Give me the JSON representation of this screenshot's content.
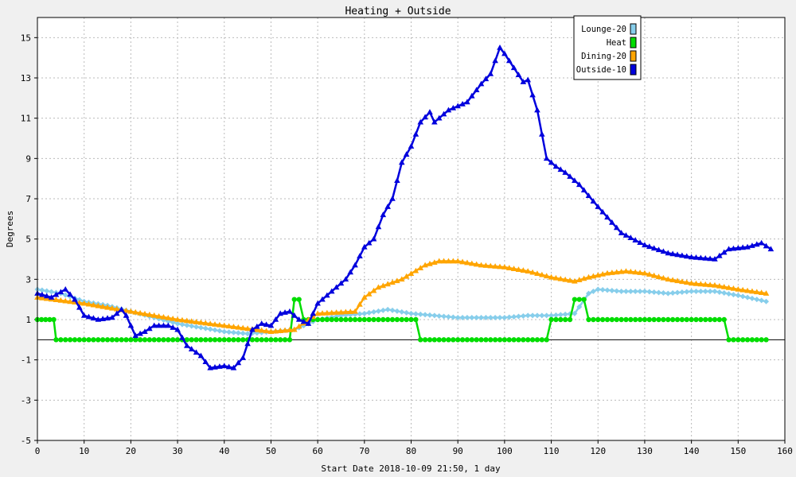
{
  "chart_data": {
    "type": "line",
    "title": "Heating + Outside",
    "xlabel": "Start Date 2018-10-09 21:50, 1 day",
    "ylabel": "Degrees",
    "xlim": [
      0,
      160
    ],
    "ylim": [
      -5,
      16
    ],
    "xticks": [
      0,
      10,
      20,
      30,
      40,
      50,
      60,
      70,
      80,
      90,
      100,
      110,
      120,
      130,
      140,
      150,
      160
    ],
    "yticks": [
      -5,
      -3,
      -1,
      1,
      3,
      5,
      7,
      9,
      11,
      13,
      15
    ],
    "grid": true,
    "legend_position": "top-right",
    "series": [
      {
        "name": "Lounge-20",
        "color": "#87ceeb",
        "marker": "diamond",
        "points": [
          [
            0,
            2.5
          ],
          [
            5,
            2.3
          ],
          [
            10,
            1.9
          ],
          [
            15,
            1.7
          ],
          [
            20,
            1.4
          ],
          [
            25,
            1.1
          ],
          [
            30,
            0.8
          ],
          [
            35,
            0.6
          ],
          [
            40,
            0.4
          ],
          [
            45,
            0.3
          ],
          [
            50,
            0.4
          ],
          [
            55,
            0.5
          ],
          [
            60,
            1.0
          ],
          [
            65,
            1.2
          ],
          [
            70,
            1.3
          ],
          [
            75,
            1.5
          ],
          [
            80,
            1.3
          ],
          [
            85,
            1.2
          ],
          [
            90,
            1.1
          ],
          [
            95,
            1.1
          ],
          [
            100,
            1.1
          ],
          [
            105,
            1.2
          ],
          [
            110,
            1.2
          ],
          [
            115,
            1.3
          ],
          [
            118,
            2.3
          ],
          [
            120,
            2.5
          ],
          [
            125,
            2.4
          ],
          [
            130,
            2.4
          ],
          [
            135,
            2.3
          ],
          [
            140,
            2.4
          ],
          [
            145,
            2.4
          ],
          [
            150,
            2.2
          ],
          [
            156,
            1.9
          ]
        ]
      },
      {
        "name": "Heat",
        "color": "#00dd00",
        "marker": "circle",
        "points": [
          [
            0,
            1
          ],
          [
            3.5,
            1
          ],
          [
            4,
            0
          ],
          [
            54,
            0
          ],
          [
            55,
            2
          ],
          [
            56,
            2
          ],
          [
            57,
            1
          ],
          [
            81,
            1
          ],
          [
            82,
            0
          ],
          [
            109,
            0
          ],
          [
            110,
            1
          ],
          [
            114,
            1
          ],
          [
            115,
            2
          ],
          [
            117,
            2
          ],
          [
            118,
            1
          ],
          [
            147,
            1
          ],
          [
            148,
            0
          ],
          [
            156,
            0
          ]
        ]
      },
      {
        "name": "Dining-20",
        "color": "#ffa500",
        "marker": "triangle",
        "points": [
          [
            0,
            2.1
          ],
          [
            10,
            1.8
          ],
          [
            20,
            1.4
          ],
          [
            30,
            1.0
          ],
          [
            40,
            0.7
          ],
          [
            50,
            0.4
          ],
          [
            55,
            0.5
          ],
          [
            60,
            1.3
          ],
          [
            68,
            1.4
          ],
          [
            70,
            2.1
          ],
          [
            73,
            2.6
          ],
          [
            78,
            3.0
          ],
          [
            83,
            3.7
          ],
          [
            86,
            3.9
          ],
          [
            90,
            3.9
          ],
          [
            95,
            3.7
          ],
          [
            100,
            3.6
          ],
          [
            105,
            3.4
          ],
          [
            110,
            3.1
          ],
          [
            115,
            2.9
          ],
          [
            118,
            3.1
          ],
          [
            122,
            3.3
          ],
          [
            126,
            3.4
          ],
          [
            130,
            3.3
          ],
          [
            135,
            3.0
          ],
          [
            140,
            2.8
          ],
          [
            145,
            2.7
          ],
          [
            150,
            2.5
          ],
          [
            156,
            2.3
          ]
        ]
      },
      {
        "name": "Outside-10",
        "color": "#0000dd",
        "marker": "triangle",
        "points": [
          [
            0,
            2.3
          ],
          [
            3,
            2.1
          ],
          [
            6,
            2.5
          ],
          [
            8,
            2.0
          ],
          [
            10,
            1.2
          ],
          [
            13,
            1.0
          ],
          [
            16,
            1.1
          ],
          [
            18,
            1.5
          ],
          [
            19,
            1.2
          ],
          [
            21,
            0.2
          ],
          [
            23,
            0.4
          ],
          [
            25,
            0.7
          ],
          [
            28,
            0.7
          ],
          [
            30,
            0.5
          ],
          [
            32,
            -0.3
          ],
          [
            35,
            -0.8
          ],
          [
            37,
            -1.4
          ],
          [
            40,
            -1.3
          ],
          [
            42,
            -1.4
          ],
          [
            44,
            -0.9
          ],
          [
            46,
            0.5
          ],
          [
            48,
            0.8
          ],
          [
            50,
            0.7
          ],
          [
            52,
            1.3
          ],
          [
            54,
            1.4
          ],
          [
            56,
            1.0
          ],
          [
            58,
            0.8
          ],
          [
            60,
            1.8
          ],
          [
            63,
            2.4
          ],
          [
            66,
            3.0
          ],
          [
            68,
            3.7
          ],
          [
            70,
            4.6
          ],
          [
            72,
            5.0
          ],
          [
            74,
            6.2
          ],
          [
            76,
            7.0
          ],
          [
            78,
            8.8
          ],
          [
            80,
            9.6
          ],
          [
            82,
            10.8
          ],
          [
            84,
            11.3
          ],
          [
            85,
            10.8
          ],
          [
            88,
            11.4
          ],
          [
            90,
            11.6
          ],
          [
            92,
            11.8
          ],
          [
            95,
            12.7
          ],
          [
            97,
            13.2
          ],
          [
            99,
            14.5
          ],
          [
            100,
            14.2
          ],
          [
            102,
            13.5
          ],
          [
            104,
            12.8
          ],
          [
            105,
            12.9
          ],
          [
            107,
            11.4
          ],
          [
            109,
            9.0
          ],
          [
            111,
            8.6
          ],
          [
            113,
            8.3
          ],
          [
            116,
            7.7
          ],
          [
            120,
            6.6
          ],
          [
            125,
            5.3
          ],
          [
            130,
            4.7
          ],
          [
            135,
            4.3
          ],
          [
            140,
            4.1
          ],
          [
            145,
            4.0
          ],
          [
            148,
            4.5
          ],
          [
            152,
            4.6
          ],
          [
            155,
            4.8
          ],
          [
            157,
            4.5
          ]
        ]
      }
    ]
  }
}
